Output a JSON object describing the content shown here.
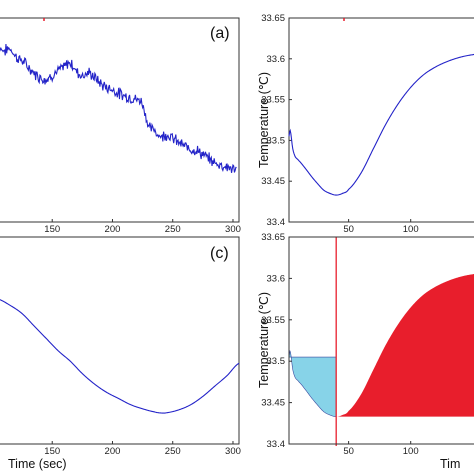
{
  "chart_data": [
    {
      "type": "line",
      "panel_label": "(a)",
      "x_ticks": [
        150,
        200,
        250,
        300
      ],
      "xlim": [
        105,
        305
      ],
      "series": [
        {
          "color": "#2323c8",
          "x": [
            105,
            110,
            115,
            120,
            125,
            130,
            135,
            140,
            145,
            150,
            155,
            160,
            165,
            170,
            175,
            180,
            185,
            190,
            195,
            200,
            205,
            210,
            215,
            220,
            225,
            230,
            235,
            240,
            245,
            250,
            255,
            260,
            265,
            270,
            275,
            280,
            285,
            290,
            295,
            300,
            303
          ],
          "y": [
            0.86,
            0.84,
            0.85,
            0.81,
            0.79,
            0.76,
            0.73,
            0.71,
            0.7,
            0.72,
            0.74,
            0.76,
            0.78,
            0.74,
            0.72,
            0.73,
            0.71,
            0.68,
            0.66,
            0.65,
            0.63,
            0.62,
            0.61,
            0.6,
            0.58,
            0.47,
            0.45,
            0.42,
            0.43,
            0.41,
            0.39,
            0.37,
            0.36,
            0.35,
            0.33,
            0.31,
            0.29,
            0.28,
            0.27,
            0.26,
            0.25
          ],
          "noise": 0.022
        }
      ]
    },
    {
      "type": "line",
      "panel_label": "",
      "ylabel": "Temperature (℃)",
      "y_ticks": [
        33.4,
        33.45,
        33.5,
        33.55,
        33.6,
        33.65
      ],
      "x_ticks": [
        50,
        100
      ],
      "ylim": [
        33.4,
        33.65
      ],
      "xlim": [
        2,
        155
      ],
      "series": [
        {
          "color": "#2323c8",
          "x": [
            2,
            3,
            5,
            7,
            10,
            15,
            20,
            25,
            30,
            35,
            40,
            45,
            50,
            60,
            70,
            80,
            90,
            100,
            110,
            120,
            130,
            140,
            150,
            155
          ],
          "y": [
            33.505,
            33.512,
            33.49,
            33.48,
            33.475,
            33.466,
            33.456,
            33.447,
            33.439,
            33.435,
            33.433,
            33.435,
            33.44,
            33.46,
            33.49,
            33.52,
            33.545,
            33.565,
            33.58,
            33.59,
            33.597,
            33.602,
            33.605,
            33.606
          ]
        }
      ]
    },
    {
      "type": "line",
      "panel_label": "(c)",
      "xlabel": "Time (sec)",
      "x_ticks": [
        150,
        200,
        250,
        300
      ],
      "xlim": [
        105,
        305
      ],
      "series": [
        {
          "color": "#2323c8",
          "x": [
            105,
            115,
            125,
            135,
            145,
            155,
            165,
            175,
            185,
            195,
            205,
            215,
            225,
            235,
            240,
            245,
            255,
            265,
            275,
            285,
            295,
            305
          ],
          "y": [
            0.7,
            0.67,
            0.63,
            0.57,
            0.51,
            0.45,
            0.4,
            0.34,
            0.29,
            0.25,
            0.22,
            0.19,
            0.17,
            0.155,
            0.15,
            0.151,
            0.165,
            0.19,
            0.23,
            0.28,
            0.33,
            0.39
          ]
        }
      ]
    },
    {
      "type": "area",
      "panel_label": "",
      "ylabel": "Temperature (℃)",
      "xlabel": "Tim",
      "y_ticks": [
        33.4,
        33.45,
        33.5,
        33.55,
        33.6,
        33.65
      ],
      "x_ticks": [
        50,
        100
      ],
      "ylim": [
        33.4,
        33.65
      ],
      "xlim": [
        2,
        155
      ],
      "marker_x": 40,
      "left_fill_color": "#87d3e8",
      "right_fill_color": "#e81e2c",
      "marker_color": "#e81e2c",
      "series": [
        {
          "x": [
            2,
            3,
            5,
            7,
            10,
            15,
            20,
            25,
            30,
            35,
            40,
            45,
            50,
            60,
            70,
            80,
            90,
            100,
            110,
            120,
            130,
            140,
            150,
            155
          ],
          "y": [
            33.505,
            33.512,
            33.49,
            33.48,
            33.475,
            33.466,
            33.456,
            33.447,
            33.439,
            33.435,
            33.433,
            33.435,
            33.44,
            33.46,
            33.49,
            33.52,
            33.545,
            33.565,
            33.58,
            33.59,
            33.597,
            33.602,
            33.605,
            33.606
          ]
        }
      ]
    }
  ]
}
